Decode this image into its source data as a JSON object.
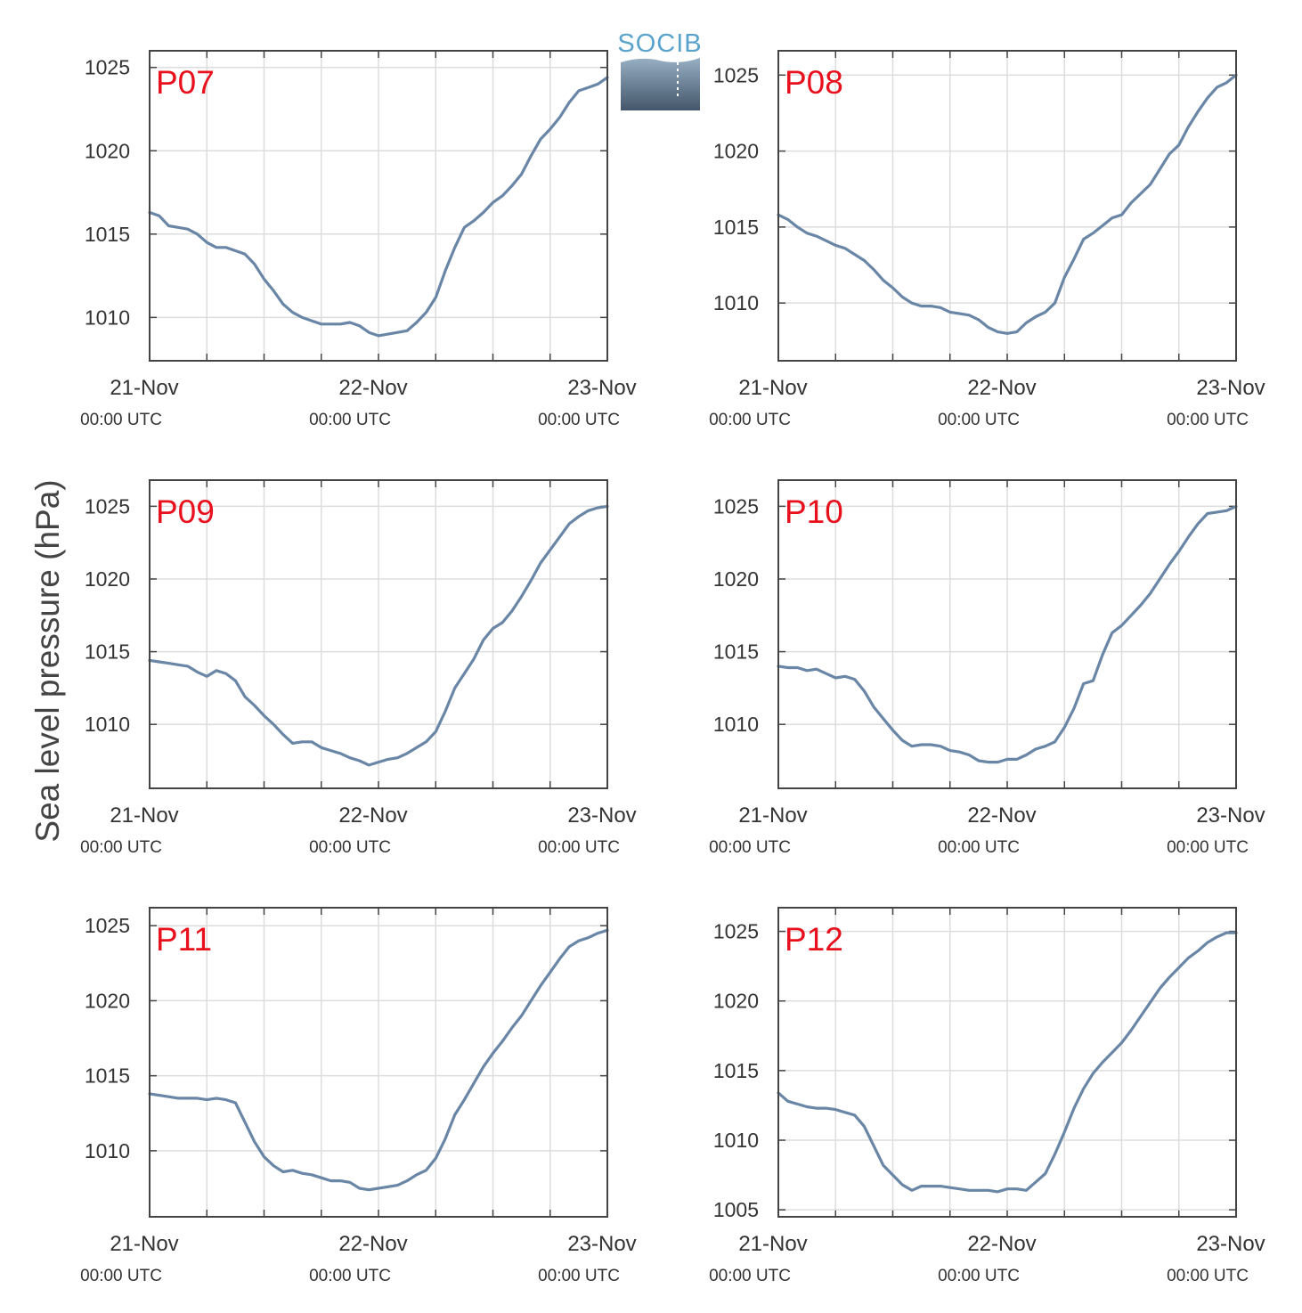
{
  "ylabel": "Sea level pressure (hPa)",
  "logo": {
    "text": "SOCIB"
  },
  "colors": {
    "line": "#6a86a6",
    "panel_label": "#e8101c",
    "grid": "#dddddd",
    "axis": "#444444",
    "text": "#333333"
  },
  "x_ticks": [
    {
      "date": "21-Nov",
      "time": "00:00 UTC"
    },
    {
      "date": "22-Nov",
      "time": "00:00 UTC"
    },
    {
      "date": "23-Nov",
      "time": "00:00 UTC"
    }
  ],
  "chart_data": [
    {
      "type": "line",
      "label": "P07",
      "xlim": [
        0,
        48
      ],
      "ylim": [
        1007.4,
        1026
      ],
      "yticks": [
        "1010",
        "1015",
        "1020",
        "1025"
      ],
      "grid": true,
      "series": [
        {
          "x": [
            0,
            1,
            2,
            3,
            4,
            5,
            6,
            7,
            8,
            9,
            10,
            11,
            12,
            13,
            14,
            15,
            16,
            17,
            18,
            19,
            20,
            21,
            22,
            23,
            24,
            25,
            26,
            27,
            28,
            29,
            30,
            31,
            32,
            33,
            34,
            35,
            36,
            37,
            38,
            39,
            40,
            41,
            42,
            43,
            44,
            45,
            46,
            47,
            48
          ],
          "values": [
            1016.3,
            1016.1,
            1015.5,
            1015.4,
            1015.3,
            1015.0,
            1014.5,
            1014.2,
            1014.2,
            1014.0,
            1013.8,
            1013.2,
            1012.3,
            1011.6,
            1010.8,
            1010.3,
            1010.0,
            1009.8,
            1009.6,
            1009.6,
            1009.6,
            1009.7,
            1009.5,
            1009.1,
            1008.9,
            1009.0,
            1009.1,
            1009.2,
            1009.7,
            1010.3,
            1011.2,
            1012.8,
            1014.2,
            1015.4,
            1015.8,
            1016.3,
            1016.9,
            1017.3,
            1017.9,
            1018.6,
            1019.7,
            1020.7,
            1021.3,
            1022.0,
            1022.9,
            1023.6,
            1023.8,
            1024.0,
            1024.4
          ]
        }
      ]
    },
    {
      "type": "line",
      "label": "P08",
      "xlim": [
        0,
        48
      ],
      "ylim": [
        1006.2,
        1026.6
      ],
      "yticks": [
        "1010",
        "1015",
        "1020",
        "1025"
      ],
      "grid": true,
      "series": [
        {
          "x": [
            0,
            1,
            2,
            3,
            4,
            5,
            6,
            7,
            8,
            9,
            10,
            11,
            12,
            13,
            14,
            15,
            16,
            17,
            18,
            19,
            20,
            21,
            22,
            23,
            24,
            25,
            26,
            27,
            28,
            29,
            30,
            31,
            32,
            33,
            34,
            35,
            36,
            37,
            38,
            39,
            40,
            41,
            42,
            43,
            44,
            45,
            46,
            47,
            48
          ],
          "values": [
            1015.8,
            1015.5,
            1015.0,
            1014.6,
            1014.4,
            1014.1,
            1013.8,
            1013.6,
            1013.2,
            1012.8,
            1012.2,
            1011.5,
            1011.0,
            1010.4,
            1010.0,
            1009.8,
            1009.8,
            1009.7,
            1009.4,
            1009.3,
            1009.2,
            1008.9,
            1008.4,
            1008.1,
            1008.0,
            1008.1,
            1008.7,
            1009.1,
            1009.4,
            1010.0,
            1011.7,
            1012.9,
            1014.2,
            1014.6,
            1015.1,
            1015.6,
            1015.8,
            1016.6,
            1017.2,
            1017.8,
            1018.8,
            1019.8,
            1020.4,
            1021.6,
            1022.6,
            1023.5,
            1024.2,
            1024.5,
            1025.0
          ]
        }
      ]
    },
    {
      "type": "line",
      "label": "P09",
      "xlim": [
        0,
        48
      ],
      "ylim": [
        1005.6,
        1026.8
      ],
      "yticks": [
        "1010",
        "1015",
        "1020",
        "1025"
      ],
      "grid": true,
      "series": [
        {
          "x": [
            0,
            1,
            2,
            3,
            4,
            5,
            6,
            7,
            8,
            9,
            10,
            11,
            12,
            13,
            14,
            15,
            16,
            17,
            18,
            19,
            20,
            21,
            22,
            23,
            24,
            25,
            26,
            27,
            28,
            29,
            30,
            31,
            32,
            33,
            34,
            35,
            36,
            37,
            38,
            39,
            40,
            41,
            42,
            43,
            44,
            45,
            46,
            47,
            48
          ],
          "values": [
            1014.4,
            1014.3,
            1014.2,
            1014.1,
            1014.0,
            1013.6,
            1013.3,
            1013.7,
            1013.5,
            1013.0,
            1011.9,
            1011.3,
            1010.6,
            1010.0,
            1009.3,
            1008.7,
            1008.8,
            1008.8,
            1008.4,
            1008.2,
            1008.0,
            1007.7,
            1007.5,
            1007.2,
            1007.4,
            1007.6,
            1007.7,
            1008.0,
            1008.4,
            1008.8,
            1009.5,
            1010.9,
            1012.5,
            1013.5,
            1014.5,
            1015.8,
            1016.6,
            1017.0,
            1017.8,
            1018.8,
            1019.9,
            1021.1,
            1022.0,
            1022.9,
            1023.8,
            1024.3,
            1024.7,
            1024.9,
            1025.0
          ]
        }
      ]
    },
    {
      "type": "line",
      "label": "P10",
      "xlim": [
        0,
        48
      ],
      "ylim": [
        1005.6,
        1026.8
      ],
      "yticks": [
        "1010",
        "1015",
        "1020",
        "1025"
      ],
      "grid": true,
      "series": [
        {
          "x": [
            0,
            1,
            2,
            3,
            4,
            5,
            6,
            7,
            8,
            9,
            10,
            11,
            12,
            13,
            14,
            15,
            16,
            17,
            18,
            19,
            20,
            21,
            22,
            23,
            24,
            25,
            26,
            27,
            28,
            29,
            30,
            31,
            32,
            33,
            34,
            35,
            36,
            37,
            38,
            39,
            40,
            41,
            42,
            43,
            44,
            45,
            46,
            47,
            48
          ],
          "values": [
            1014.0,
            1013.9,
            1013.9,
            1013.7,
            1013.8,
            1013.5,
            1013.2,
            1013.3,
            1013.1,
            1012.3,
            1011.2,
            1010.4,
            1009.6,
            1008.9,
            1008.5,
            1008.6,
            1008.6,
            1008.5,
            1008.2,
            1008.1,
            1007.9,
            1007.5,
            1007.4,
            1007.4,
            1007.6,
            1007.6,
            1007.9,
            1008.3,
            1008.5,
            1008.8,
            1009.8,
            1011.1,
            1012.8,
            1013.0,
            1014.8,
            1016.3,
            1016.8,
            1017.5,
            1018.2,
            1019.0,
            1020.0,
            1021.0,
            1021.9,
            1022.9,
            1023.8,
            1024.5,
            1024.6,
            1024.7,
            1025.0
          ]
        }
      ]
    },
    {
      "type": "line",
      "label": "P11",
      "xlim": [
        0,
        48
      ],
      "ylim": [
        1005.6,
        1026.2
      ],
      "yticks": [
        "1010",
        "1015",
        "1020",
        "1025"
      ],
      "grid": true,
      "series": [
        {
          "x": [
            0,
            1,
            2,
            3,
            4,
            5,
            6,
            7,
            8,
            9,
            10,
            11,
            12,
            13,
            14,
            15,
            16,
            17,
            18,
            19,
            20,
            21,
            22,
            23,
            24,
            25,
            26,
            27,
            28,
            29,
            30,
            31,
            32,
            33,
            34,
            35,
            36,
            37,
            38,
            39,
            40,
            41,
            42,
            43,
            44,
            45,
            46,
            47,
            48
          ],
          "values": [
            1013.8,
            1013.7,
            1013.6,
            1013.5,
            1013.5,
            1013.5,
            1013.4,
            1013.5,
            1013.4,
            1013.2,
            1011.9,
            1010.6,
            1009.6,
            1009.0,
            1008.6,
            1008.7,
            1008.5,
            1008.4,
            1008.2,
            1008.0,
            1008.0,
            1007.9,
            1007.5,
            1007.4,
            1007.5,
            1007.6,
            1007.7,
            1008.0,
            1008.4,
            1008.7,
            1009.5,
            1010.8,
            1012.4,
            1013.4,
            1014.5,
            1015.6,
            1016.5,
            1017.3,
            1018.2,
            1019.0,
            1020.0,
            1021.0,
            1021.9,
            1022.8,
            1023.6,
            1024.0,
            1024.2,
            1024.5,
            1024.7
          ]
        }
      ]
    },
    {
      "type": "line",
      "label": "P12",
      "xlim": [
        0,
        48
      ],
      "ylim": [
        1004.5,
        1026.7
      ],
      "yticks": [
        "1005",
        "1010",
        "1015",
        "1020",
        "1025"
      ],
      "grid": true,
      "series": [
        {
          "x": [
            0,
            1,
            2,
            3,
            4,
            5,
            6,
            7,
            8,
            9,
            10,
            11,
            12,
            13,
            14,
            15,
            16,
            17,
            18,
            19,
            20,
            21,
            22,
            23,
            24,
            25,
            26,
            27,
            28,
            29,
            30,
            31,
            32,
            33,
            34,
            35,
            36,
            37,
            38,
            39,
            40,
            41,
            42,
            43,
            44,
            45,
            46,
            47,
            48
          ],
          "values": [
            1013.4,
            1012.8,
            1012.6,
            1012.4,
            1012.3,
            1012.3,
            1012.2,
            1012.0,
            1011.8,
            1011.0,
            1009.6,
            1008.2,
            1007.5,
            1006.8,
            1006.4,
            1006.7,
            1006.7,
            1006.7,
            1006.6,
            1006.5,
            1006.4,
            1006.4,
            1006.4,
            1006.3,
            1006.5,
            1006.5,
            1006.4,
            1007.0,
            1007.6,
            1009.0,
            1010.6,
            1012.3,
            1013.7,
            1014.8,
            1015.6,
            1016.3,
            1017.0,
            1017.9,
            1018.9,
            1019.9,
            1020.9,
            1021.7,
            1022.4,
            1023.1,
            1023.6,
            1024.2,
            1024.6,
            1024.9,
            1024.9
          ]
        }
      ]
    }
  ]
}
